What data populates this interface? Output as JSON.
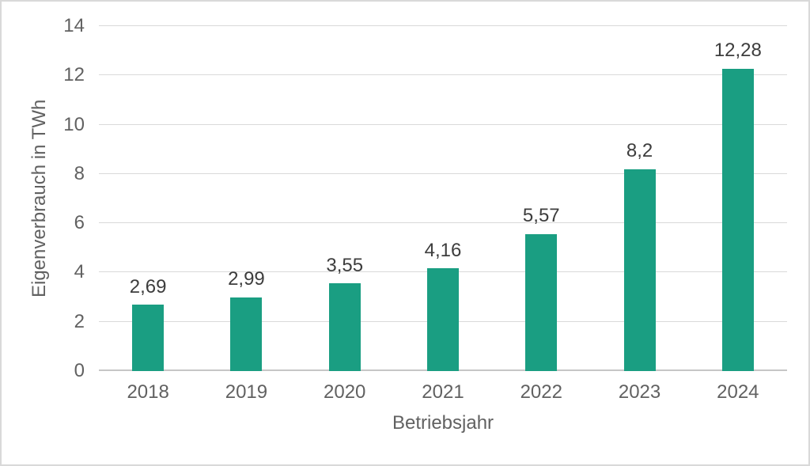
{
  "chart_data": {
    "type": "bar",
    "title": "",
    "xlabel": "Betriebsjahr",
    "ylabel": "Eigenverbrauch in TWh",
    "categories": [
      "2018",
      "2019",
      "2020",
      "2021",
      "2022",
      "2023",
      "2024"
    ],
    "values": [
      2.69,
      2.99,
      3.55,
      4.16,
      5.57,
      8.2,
      12.28
    ],
    "value_labels": [
      "2,69",
      "2,99",
      "3,55",
      "4,16",
      "5,57",
      "8,2",
      "12,28"
    ],
    "ylim": [
      0,
      14
    ],
    "ytick_step": 2,
    "ytick_labels": [
      "0",
      "2",
      "4",
      "6",
      "8",
      "10",
      "12",
      "14"
    ],
    "grid": true,
    "legend": "none",
    "colors": {
      "bar": "#1a9e82",
      "gridline": "#d9d9d9",
      "axis_line": "#c6c6c6",
      "tick_label": "#616161",
      "axis_title": "#616161",
      "value_label": "#3d3d3d",
      "frame_border": "#d9d9d9",
      "background": "#ffffff"
    }
  }
}
